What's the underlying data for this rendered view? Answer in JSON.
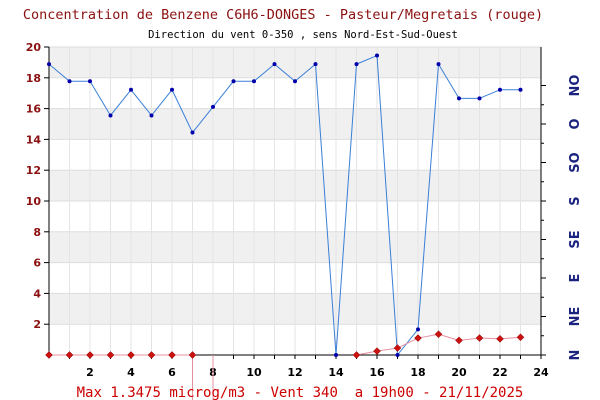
{
  "chart_data": {
    "type": "line",
    "title": "Concentration de Benzene C6H6-DONGES - Pasteur/Megretais (rouge)",
    "subtitle": "Direction du vent 0-350 , sens Nord-Est-Sud-Ouest",
    "footer": "Max 1.3475 microg/m3 - Vent 340  a 19h00 - 21/11/2025",
    "xlim": [
      0,
      24
    ],
    "ylim": [
      0,
      20
    ],
    "x_ticks": [
      "2",
      "4",
      "6",
      "8",
      "10",
      "12",
      "14",
      "16",
      "18",
      "20",
      "22",
      "24"
    ],
    "y_ticks": [
      "2",
      "4",
      "6",
      "8",
      "10",
      "12",
      "14",
      "16",
      "18",
      "20"
    ],
    "right_axis": {
      "range": [
        0,
        360
      ],
      "labels": [
        "N",
        "NE",
        "E",
        "SE",
        "S",
        "SO",
        "O",
        "NO"
      ]
    },
    "grid": true,
    "series": [
      {
        "role": "benzene",
        "color": "#cc1111",
        "points": [
          [
            0,
            0
          ],
          [
            1,
            0
          ],
          [
            2,
            0
          ],
          [
            3,
            0
          ],
          [
            4,
            0
          ],
          [
            5,
            0
          ],
          [
            6,
            0
          ],
          [
            7,
            0
          ],
          [
            15,
            0
          ],
          [
            16,
            0.25
          ],
          [
            17,
            0.45
          ],
          [
            18,
            1.1
          ],
          [
            19,
            1.35
          ],
          [
            20,
            0.95
          ],
          [
            21,
            1.1
          ],
          [
            22,
            1.05
          ],
          [
            23,
            1.15
          ]
        ],
        "dropouts": [
          [
            7,
            8
          ]
        ]
      },
      {
        "role": "wind_direction",
        "color": "#3a7fd8",
        "marker_color": "#0000aa",
        "points": [
          [
            0,
            340
          ],
          [
            1,
            320
          ],
          [
            2,
            320
          ],
          [
            3,
            280
          ],
          [
            4,
            310
          ],
          [
            5,
            280
          ],
          [
            6,
            310
          ],
          [
            7,
            260
          ],
          [
            8,
            290
          ],
          [
            9,
            320
          ],
          [
            10,
            320
          ],
          [
            11,
            340
          ],
          [
            12,
            320
          ],
          [
            13,
            340
          ],
          [
            14,
            0
          ],
          [
            15,
            340
          ],
          [
            16,
            350
          ],
          [
            17,
            0
          ],
          [
            18,
            30
          ],
          [
            19,
            340
          ],
          [
            20,
            300
          ],
          [
            21,
            300
          ],
          [
            22,
            310
          ],
          [
            23,
            310
          ]
        ]
      }
    ]
  }
}
